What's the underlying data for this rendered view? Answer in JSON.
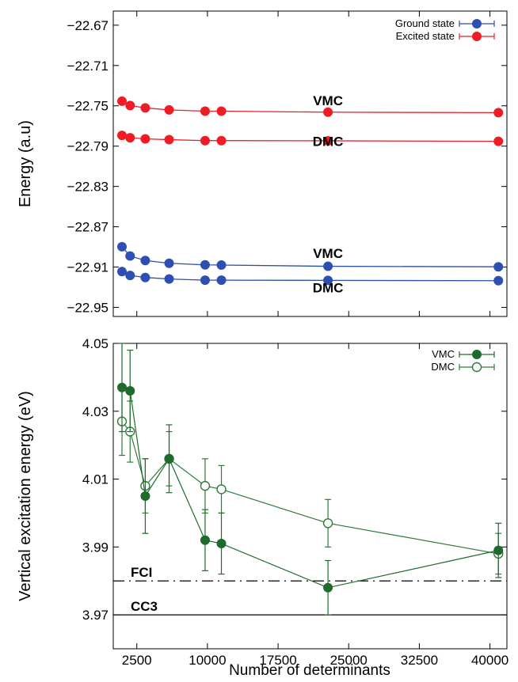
{
  "colors": {
    "ground": "#2a4fa8",
    "excited": "#e8202a",
    "ground_marker": "#2d4fb4",
    "excited_marker": "#ee1c25",
    "vmc_green": "#1f6b2e",
    "dmc_green": "#2f7a3a",
    "axis": "#000000"
  },
  "chart_data": [
    {
      "type": "line",
      "panel": "top",
      "xlabel": "",
      "ylabel": "Energy (a.u)",
      "xlim": [
        0,
        41800
      ],
      "ylim": [
        -22.959,
        -22.656
      ],
      "yticks": [
        -22.67,
        -22.71,
        -22.75,
        -22.79,
        -22.83,
        -22.87,
        -22.91,
        -22.95
      ],
      "ytick_labels": [
        "−22.67",
        "−22.71",
        "−22.75",
        "−22.79",
        "−22.83",
        "−22.87",
        "−22.91",
        "−22.95"
      ],
      "xticks": [
        2500,
        10000,
        17500,
        25000,
        32500,
        40000
      ],
      "x": [
        926,
        1788,
        3400,
        5932,
        9753,
        11482,
        22800,
        40894
      ],
      "legend": {
        "position": "top-right",
        "entries": [
          {
            "label": "Ground state",
            "series": "ground"
          },
          {
            "label": "Excited state",
            "series": "excited"
          }
        ]
      },
      "series": [
        {
          "key": "excited",
          "group": "VMC",
          "values": [
            -22.7454,
            -22.7497,
            -22.7521,
            -22.754,
            -22.7553,
            -22.7553,
            -22.7563,
            -22.7568
          ]
        },
        {
          "key": "excited",
          "group": "DMC",
          "values": [
            -22.7793,
            -22.7817,
            -22.7828,
            -22.7836,
            -22.7845,
            -22.7845,
            -22.7847,
            -22.7852
          ]
        },
        {
          "key": "ground",
          "group": "VMC",
          "values": [
            -22.8898,
            -22.899,
            -22.9035,
            -22.9062,
            -22.9078,
            -22.908,
            -22.9092,
            -22.9097
          ]
        },
        {
          "key": "ground",
          "group": "DMC",
          "values": [
            -22.9145,
            -22.9183,
            -22.9203,
            -22.9218,
            -22.923,
            -22.923,
            -22.9232,
            -22.9235
          ]
        }
      ],
      "annotations": [
        {
          "text": "VMC",
          "x": 22800,
          "y": -22.7495
        },
        {
          "text": "DMC",
          "x": 22800,
          "y": -22.79
        },
        {
          "text": "VMC",
          "x": 22800,
          "y": -22.901
        },
        {
          "text": "DMC",
          "x": 22800,
          "y": -22.935
        }
      ]
    },
    {
      "type": "line",
      "panel": "bottom",
      "xlabel": "Number of determinants",
      "ylabel": "Vertical excitation energy (eV)",
      "xlim": [
        0,
        41800
      ],
      "ylim": [
        3.96,
        4.05
      ],
      "yticks": [
        4.05,
        4.03,
        4.01,
        3.99,
        3.97
      ],
      "ytick_labels": [
        "4.05",
        "4.03",
        "4.01",
        "3.99",
        "3.97"
      ],
      "xticks": [
        2500,
        10000,
        17500,
        25000,
        32500,
        40000
      ],
      "xtick_labels": [
        "2500",
        "10000",
        "17500",
        "25000",
        "32500",
        "40000"
      ],
      "legend": {
        "position": "top-right",
        "entries": [
          {
            "label": "VMC",
            "series": "VMC"
          },
          {
            "label": "DMC",
            "series": "DMC"
          }
        ]
      },
      "series": [
        {
          "name": "VMC",
          "marker": "filled",
          "x": [
            926,
            1788,
            3400,
            5932,
            9753,
            11482,
            22800,
            40894
          ],
          "values": [
            4.037,
            4.036,
            4.005,
            4.016,
            3.992,
            3.991,
            3.978,
            3.989
          ],
          "errors": [
            0.013,
            0.012,
            0.011,
            0.01,
            0.009,
            0.009,
            0.008,
            0.008
          ]
        },
        {
          "name": "DMC",
          "marker": "open",
          "x": [
            926,
            1788,
            3400,
            5932,
            9753,
            11482,
            22800,
            40894
          ],
          "values": [
            4.027,
            4.024,
            4.008,
            4.016,
            4.008,
            4.007,
            3.997,
            3.988
          ],
          "errors": [
            0.01,
            0.009,
            0.008,
            0.008,
            0.008,
            0.007,
            0.007,
            0.006
          ]
        }
      ],
      "reference_lines": [
        {
          "label": "FCI",
          "y": 3.98,
          "style": "dash-dot"
        },
        {
          "label": "CC3",
          "y": 3.97,
          "style": "solid"
        }
      ]
    }
  ]
}
